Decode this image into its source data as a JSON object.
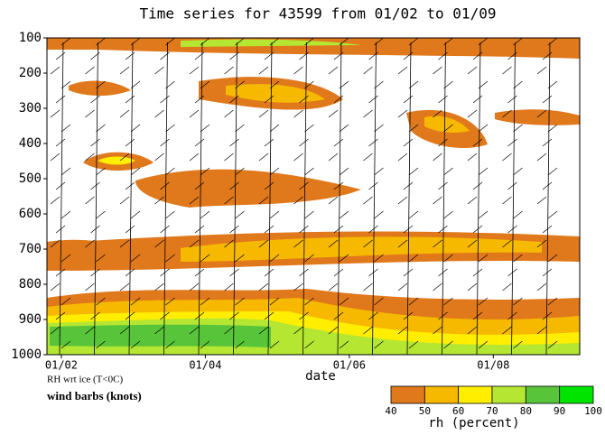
{
  "chart_data": {
    "type": "contour",
    "title": "Time series for 43599 from 01/02 to 01/09",
    "x_label": "date",
    "ylim": [
      1000,
      100
    ],
    "yticks": [
      100,
      200,
      300,
      400,
      500,
      600,
      700,
      800,
      900,
      1000
    ],
    "xlim": [
      1.8,
      9.2
    ],
    "xticks": [
      {
        "value": 2,
        "label": "01/02"
      },
      {
        "value": 4,
        "label": "01/04"
      },
      {
        "value": 6,
        "label": "01/06"
      },
      {
        "value": 8,
        "label": "01/08"
      }
    ],
    "notes": [
      "RH wrt ice (T<0C)",
      "wind barbs (knots)"
    ],
    "colorbar": {
      "label": "rh (percent)",
      "levels": [
        40,
        50,
        60,
        70,
        80,
        90,
        100
      ],
      "colors": [
        "#e0781c",
        "#f7b800",
        "#ffee00",
        "#b4e632",
        "#58c43a",
        "#00e400"
      ]
    }
  }
}
